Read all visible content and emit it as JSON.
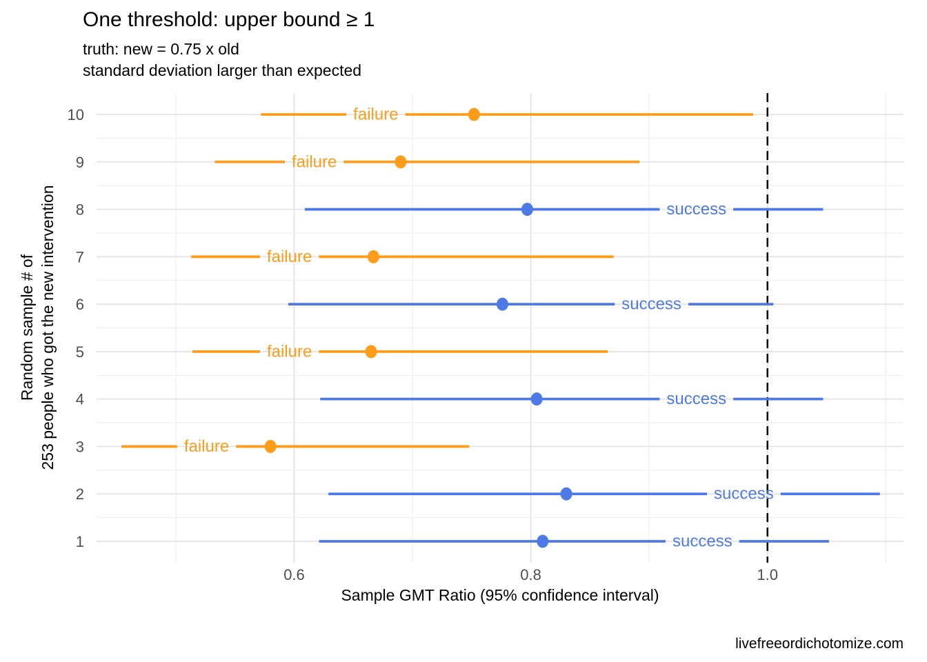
{
  "chart_data": {
    "type": "pointrange",
    "title": "One threshold: upper bound ≥ 1",
    "subtitle": [
      "truth: new = 0.75 x old",
      "standard deviation larger than expected"
    ],
    "xlabel": "Sample GMT Ratio (95% confidence interval)",
    "ylabel": [
      "Random sample # of",
      "253 people who got the new intervention"
    ],
    "caption": "livefreeordichotomize.com",
    "xlim": [
      0.433,
      1.115
    ],
    "x_major_ticks": [
      {
        "value": 0.6,
        "label": "0.6"
      },
      {
        "value": 0.8,
        "label": "0.8"
      },
      {
        "value": 1.0,
        "label": "1.0"
      }
    ],
    "x_minor_ticks": [
      0.5,
      0.7,
      0.9,
      1.1
    ],
    "y_ticks": [
      "1",
      "2",
      "3",
      "4",
      "5",
      "6",
      "7",
      "8",
      "9",
      "10"
    ],
    "threshold": {
      "value": 1.0,
      "style": "dashed",
      "color": "#000000"
    },
    "outcome_colors": {
      "success": "#4D7AE6",
      "failure": "#FF9C1A"
    },
    "grid": {
      "major": "#E2E2E2",
      "minor": "#F0F0F0",
      "show": true
    },
    "axis_text_color": "#4D4D4D",
    "legend_position": "none",
    "rows": [
      {
        "sample": 1,
        "outcome": "success",
        "estimate": 0.81,
        "lower": 0.621,
        "upper": 1.052,
        "label_x": 0.945
      },
      {
        "sample": 2,
        "outcome": "success",
        "estimate": 0.83,
        "lower": 0.629,
        "upper": 1.095,
        "label_x": 0.98
      },
      {
        "sample": 3,
        "outcome": "failure",
        "estimate": 0.58,
        "lower": 0.454,
        "upper": 0.748,
        "label_x": 0.526
      },
      {
        "sample": 4,
        "outcome": "success",
        "estimate": 0.805,
        "lower": 0.622,
        "upper": 1.047,
        "label_x": 0.94
      },
      {
        "sample": 5,
        "outcome": "failure",
        "estimate": 0.665,
        "lower": 0.514,
        "upper": 0.865,
        "label_x": 0.596
      },
      {
        "sample": 6,
        "outcome": "success",
        "estimate": 0.776,
        "lower": 0.595,
        "upper": 1.005,
        "label_x": 0.902
      },
      {
        "sample": 7,
        "outcome": "failure",
        "estimate": 0.667,
        "lower": 0.513,
        "upper": 0.87,
        "label_x": 0.596
      },
      {
        "sample": 8,
        "outcome": "success",
        "estimate": 0.797,
        "lower": 0.609,
        "upper": 1.047,
        "label_x": 0.94
      },
      {
        "sample": 9,
        "outcome": "failure",
        "estimate": 0.69,
        "lower": 0.533,
        "upper": 0.892,
        "label_x": 0.617
      },
      {
        "sample": 10,
        "outcome": "failure",
        "estimate": 0.752,
        "lower": 0.572,
        "upper": 0.988,
        "label_x": 0.669
      }
    ]
  }
}
